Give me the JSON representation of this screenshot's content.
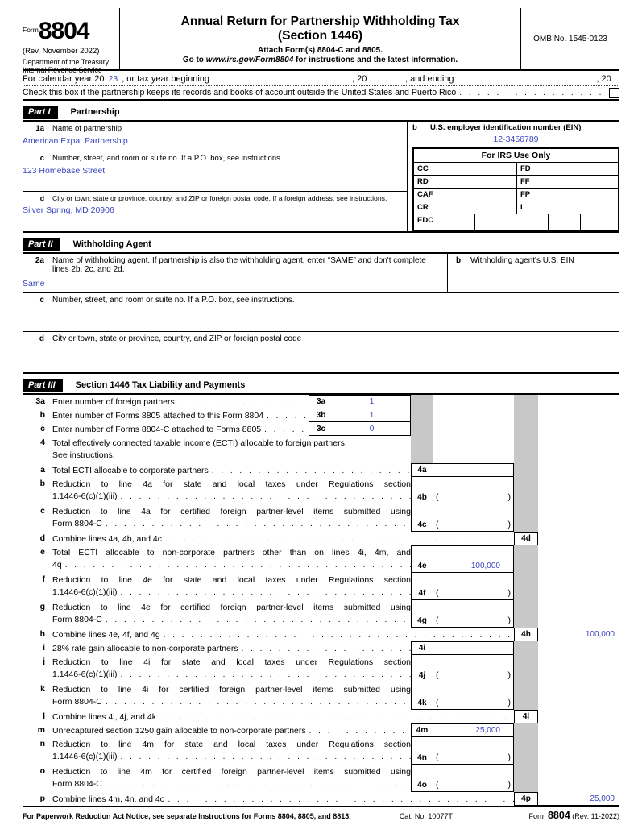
{
  "leader_dots": ". . . . . . . . . . . . . . . . . . . . . . . . . . . . . . . . . . . . . . . . . . . . . . . . . . . . . . . . . . . . . . . . . . . . . . . . . . . . . . . . . . . . . . . . . .",
  "paren_open": "(",
  "paren_close": ")",
  "header": {
    "form_word": "Form",
    "form_number": "8804",
    "rev": "(Rev. November 2022)",
    "dept": "Department of the Treasury",
    "irs": "Internal Revenue Service",
    "title1": "Annual Return for Partnership Withholding Tax",
    "title2": "(Section 1446)",
    "attach": "Attach Form(s) 8804-C and 8805.",
    "goto_pre": "Go to ",
    "goto_url": "www.irs.gov/Form8804",
    "goto_post": " for instructions and the latest information.",
    "omb": "OMB No. 1545-0123"
  },
  "calendar": {
    "t1": "For calendar year 20",
    "year": "23",
    "t2": ", or tax year beginning",
    "t3": ", 20",
    "t4": ", and ending",
    "t5": ", 20"
  },
  "records_check": {
    "text": "Check this box if the partnership keeps its records and books of account outside the United States and Puerto Rico"
  },
  "part1": {
    "badge": "Part I",
    "title": "Partnership",
    "f1a": {
      "letter": "1a",
      "label": "Name of partnership",
      "value": "American Expat Partnership"
    },
    "fb": {
      "letter": "b",
      "label": "U.S. employer identification number (EIN)",
      "value": "12-3456789"
    },
    "fc": {
      "letter": "c",
      "label": "Number, street, and room or suite no. If a P.O. box, see instructions.",
      "value": "123 Homebase Street"
    },
    "fd": {
      "letter": "d",
      "label": "City or town, state or province, country, and ZIP or foreign postal code. If a foreign address, see instructions.",
      "value": "Silver Spring, MD 20906"
    },
    "irs_use": {
      "title": "For IRS Use Only",
      "cc": "CC",
      "fd": "FD",
      "rd": "RD",
      "ff": "FF",
      "caf": "CAF",
      "fp": "FP",
      "cr": "CR",
      "i": "I",
      "edc": "EDC"
    }
  },
  "part2": {
    "badge": "Part II",
    "title": "Withholding Agent",
    "f2a": {
      "letter": "2a",
      "label": "Name of withholding agent. If partnership is also the withholding agent, enter “SAME” and don't complete lines 2b, 2c, and 2d.",
      "value": "Same"
    },
    "fb": {
      "letter": "b",
      "label": "Withholding agent's U.S. EIN"
    },
    "fc": {
      "letter": "c",
      "label": "Number, street, and room or suite no. If a P.O. box, see instructions."
    },
    "fd": {
      "letter": "d",
      "label": "City or town, state or province, country, and ZIP or foreign postal code"
    }
  },
  "part3": {
    "badge": "Part III",
    "title": "Section 1446 Tax Liability and Payments",
    "rows": [
      {
        "letter": "3a",
        "desc": "Enter number of foreign partners",
        "box": "3a",
        "value": "1"
      },
      {
        "letter": "b",
        "desc": "Enter number of Forms 8805 attached to this Form 8804",
        "box": "3b",
        "value": "1"
      },
      {
        "letter": "c",
        "desc": "Enter number of Forms 8804-C attached to Forms 8805",
        "box": "3c",
        "value": "0"
      },
      {
        "letter": "4",
        "desc1": "Total effectively connected taxable income (ECTI) allocable to foreign partners.",
        "desc2": "See instructions."
      },
      {
        "letter": "a",
        "desc": "Total ECTI allocable to corporate partners",
        "box": "4a",
        "value": ""
      },
      {
        "letter": "b",
        "desc1": "Reduction to line 4a for state and local taxes under Regulations section",
        "desc2": "1.1446-6(c)(1)(iii)",
        "box": "4b"
      },
      {
        "letter": "c",
        "desc1": "Reduction to line 4a for certified foreign partner-level items submitted using",
        "desc2": "Form 8804-C",
        "box": "4c"
      },
      {
        "letter": "d",
        "desc": "Combine lines 4a, 4b, and 4c",
        "box": "4d",
        "value": ""
      },
      {
        "letter": "e",
        "desc1": "Total ECTI allocable to non-corporate partners other than on lines 4i, 4m, and",
        "desc2": "4q",
        "box": "4e",
        "value": "100,000"
      },
      {
        "letter": "f",
        "desc1": "Reduction to line 4e for state and local taxes under Regulations section",
        "desc2": "1.1446-6(c)(1)(iii)",
        "box": "4f"
      },
      {
        "letter": "g",
        "desc1": "Reduction to line 4e for certified foreign partner-level items submitted using",
        "desc2": "Form 8804-C",
        "box": "4g"
      },
      {
        "letter": "h",
        "desc": "Combine lines 4e, 4f, and 4g",
        "box": "4h",
        "value": "100,000"
      },
      {
        "letter": "i",
        "desc": "28% rate gain allocable to non-corporate partners",
        "box": "4i",
        "value": ""
      },
      {
        "letter": "j",
        "desc1": "Reduction to line 4i for state and local taxes under Regulations section",
        "desc2": "1.1446-6(c)(1)(iii)",
        "box": "4j"
      },
      {
        "letter": "k",
        "desc1": "Reduction to line 4i for certified foreign partner-level items submitted using",
        "desc2": "Form 8804-C",
        "box": "4k"
      },
      {
        "letter": "l",
        "desc": "Combine lines 4i, 4j, and 4k",
        "box": "4l",
        "value": ""
      },
      {
        "letter": "m",
        "desc": "Unrecaptured section 1250 gain allocable to non-corporate partners",
        "box": "4m",
        "value": "25,000"
      },
      {
        "letter": "n",
        "desc1": "Reduction to line 4m for state and local taxes under Regulations section",
        "desc2": "1.1446-6(c)(1)(iii)",
        "box": "4n"
      },
      {
        "letter": "o",
        "desc1": "Reduction to line 4m for certified foreign partner-level items submitted using",
        "desc2": "Form 8804-C",
        "box": "4o"
      },
      {
        "letter": "p",
        "desc": "Combine lines 4m, 4n, and 4o",
        "box": "4p",
        "value": "25,000"
      }
    ]
  },
  "footer": {
    "notice": "For Paperwork Reduction Act Notice, see separate Instructions for Forms 8804, 8805, and 8813.",
    "cat": "Cat. No. 10077T",
    "form_word": "Form",
    "form_num": "8804",
    "rev": "(Rev. 11-2022)"
  }
}
